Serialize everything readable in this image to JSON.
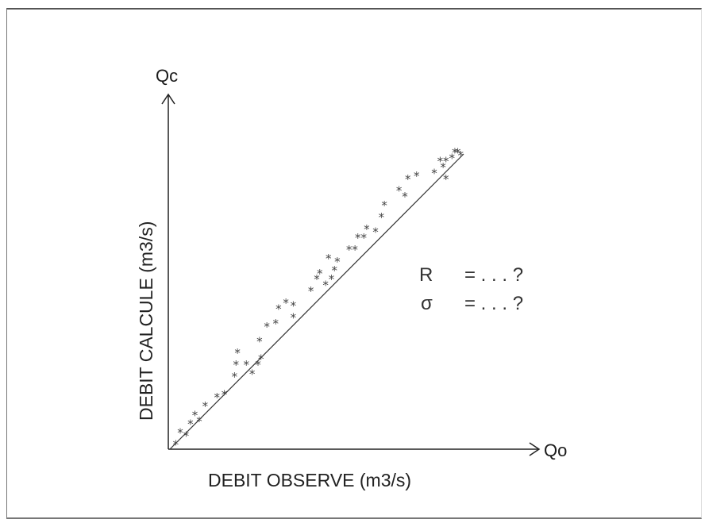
{
  "chart_data": {
    "type": "scatter",
    "x_axis_name": "Qo",
    "y_axis_name": "Qc",
    "xlabel": "DEBIT OBSERVE  (m3/s)",
    "ylabel": "DEBIT CALCULE  (m3/s)",
    "stats": [
      {
        "symbol": "R",
        "text": "= . . . ?"
      },
      {
        "symbol": "σ",
        "text": "= . . . ?"
      }
    ],
    "marker": "*",
    "fit_line": {
      "x": [
        0,
        100
      ],
      "y": [
        0,
        100
      ]
    },
    "grid": false,
    "points": [
      {
        "x": 2,
        "y": 2
      },
      {
        "x": 3.5,
        "y": 6
      },
      {
        "x": 5.5,
        "y": 5
      },
      {
        "x": 7,
        "y": 9
      },
      {
        "x": 8.5,
        "y": 12
      },
      {
        "x": 10,
        "y": 10
      },
      {
        "x": 12,
        "y": 15
      },
      {
        "x": 16,
        "y": 18
      },
      {
        "x": 18.5,
        "y": 19
      },
      {
        "x": 22,
        "y": 25
      },
      {
        "x": 22.5,
        "y": 29
      },
      {
        "x": 23,
        "y": 33
      },
      {
        "x": 26,
        "y": 29
      },
      {
        "x": 28,
        "y": 26
      },
      {
        "x": 30,
        "y": 29
      },
      {
        "x": 31,
        "y": 31
      },
      {
        "x": 30.5,
        "y": 37
      },
      {
        "x": 33,
        "y": 42
      },
      {
        "x": 36,
        "y": 43
      },
      {
        "x": 37,
        "y": 48
      },
      {
        "x": 39.5,
        "y": 50
      },
      {
        "x": 42,
        "y": 45
      },
      {
        "x": 42,
        "y": 49
      },
      {
        "x": 48,
        "y": 54
      },
      {
        "x": 50,
        "y": 58
      },
      {
        "x": 51,
        "y": 60
      },
      {
        "x": 53,
        "y": 56
      },
      {
        "x": 55,
        "y": 58
      },
      {
        "x": 56,
        "y": 61
      },
      {
        "x": 54,
        "y": 65
      },
      {
        "x": 57,
        "y": 64
      },
      {
        "x": 61,
        "y": 68
      },
      {
        "x": 63,
        "y": 68
      },
      {
        "x": 64,
        "y": 72
      },
      {
        "x": 66,
        "y": 72
      },
      {
        "x": 67,
        "y": 75
      },
      {
        "x": 70,
        "y": 74
      },
      {
        "x": 72,
        "y": 79
      },
      {
        "x": 73,
        "y": 83
      },
      {
        "x": 78,
        "y": 88
      },
      {
        "x": 80,
        "y": 86
      },
      {
        "x": 81,
        "y": 92
      },
      {
        "x": 84,
        "y": 93
      },
      {
        "x": 90,
        "y": 94
      },
      {
        "x": 93,
        "y": 96
      },
      {
        "x": 94,
        "y": 98
      },
      {
        "x": 92,
        "y": 98
      },
      {
        "x": 94,
        "y": 92
      },
      {
        "x": 96,
        "y": 99
      },
      {
        "x": 97,
        "y": 101
      },
      {
        "x": 98,
        "y": 101
      },
      {
        "x": 99,
        "y": 100
      }
    ]
  }
}
